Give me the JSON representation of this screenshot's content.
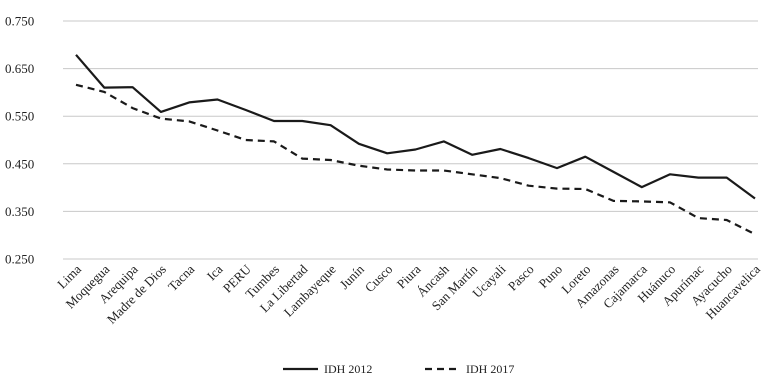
{
  "chart_data": {
    "type": "line",
    "categories": [
      "Lima",
      "Moquegua",
      "Arequipa",
      "Madre de Dios",
      "Tacna",
      "Ica",
      "PERU",
      "Tumbes",
      "La Libertad",
      "Lambayeque",
      "Junín",
      "Cusco",
      "Piura",
      "Áncash",
      "San Martín",
      "Ucayali",
      "Pasco",
      "Puno",
      "Loreto",
      "Amazonas",
      "Cajamarca",
      "Huánuco",
      "Apurímac",
      "Ayacucho",
      "Huancavelica"
    ],
    "series": [
      {
        "name": "IDH 2012",
        "style": "solid",
        "color": "#1a1a1a",
        "values": [
          0.679,
          0.61,
          0.611,
          0.559,
          0.579,
          0.585,
          0.563,
          0.54,
          0.54,
          0.531,
          0.492,
          0.472,
          0.48,
          0.497,
          0.469,
          0.481,
          0.462,
          0.441,
          0.465,
          0.433,
          0.401,
          0.428,
          0.421,
          0.421,
          0.377
        ]
      },
      {
        "name": "IDH 2017",
        "style": "dashed",
        "color": "#1a1a1a",
        "values": [
          0.616,
          0.601,
          0.567,
          0.545,
          0.539,
          0.52,
          0.5,
          0.497,
          0.461,
          0.458,
          0.446,
          0.438,
          0.436,
          0.436,
          0.428,
          0.42,
          0.404,
          0.398,
          0.397,
          0.372,
          0.371,
          0.369,
          0.336,
          0.332,
          0.302
        ]
      }
    ],
    "ylim": [
      0.25,
      0.75
    ],
    "yticks": [
      "0.250",
      "0.350",
      "0.450",
      "0.550",
      "0.650",
      "0.750"
    ],
    "ytick_values": [
      0.25,
      0.35,
      0.45,
      0.55,
      0.65,
      0.75
    ],
    "grid": "horizontal",
    "legend": "bottom-center",
    "title": "",
    "xlabel": "",
    "ylabel": ""
  }
}
